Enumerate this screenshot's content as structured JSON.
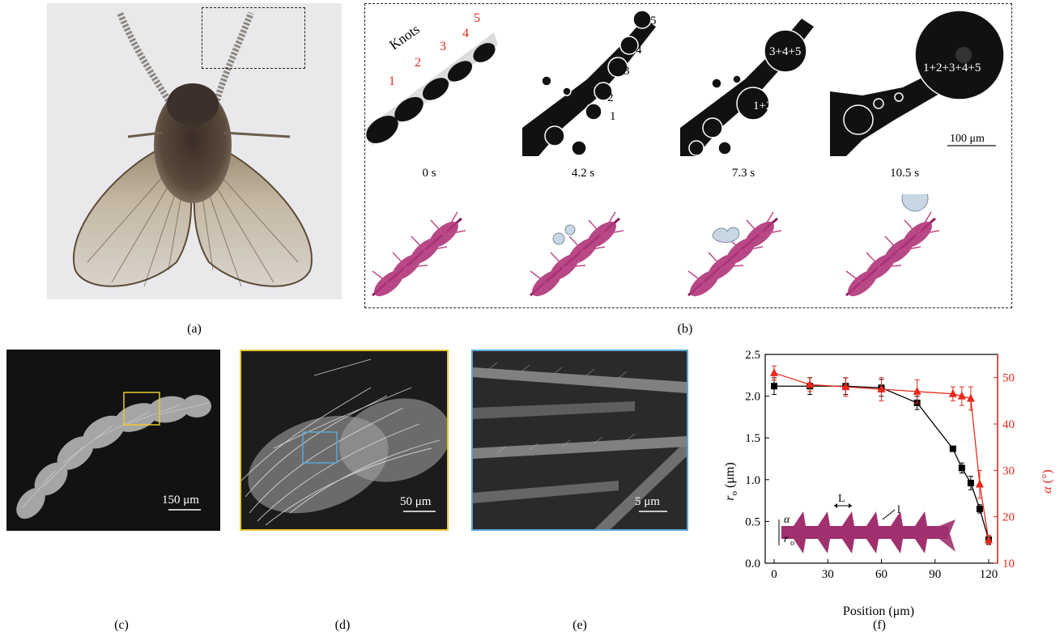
{
  "panels": {
    "a": {
      "label": "(a)"
    },
    "b": {
      "label": "(b)",
      "knots_title": "Knots",
      "knot_numbers": [
        "1",
        "2",
        "3",
        "4",
        "5"
      ],
      "frame2_labels": [
        "5",
        "4",
        "3",
        "2",
        "1"
      ],
      "frame3_labels": [
        "3+4+5",
        "1+2"
      ],
      "frame4_labels": [
        "1+2+3+4+5"
      ],
      "scale_bar": "100 μm",
      "times": [
        "0 s",
        "4.2 s",
        "7.3 s",
        "10.5 s"
      ]
    },
    "c": {
      "label": "(c)",
      "scale_bar": "150 μm"
    },
    "d": {
      "label": "(d)",
      "scale_bar": "50 μm"
    },
    "e": {
      "label": "(e)",
      "scale_bar": "5 μm"
    },
    "f": {
      "label": "(f)"
    }
  },
  "colors": {
    "series_r0": "#000000",
    "series_alpha": "#e8291c",
    "frame_d": "#e8c92e",
    "frame_e": "#5aa6d4",
    "spine_magenta": "#a0306e"
  },
  "chart_data": {
    "type": "line",
    "xlabel": "Position (μm)",
    "ylabel_left": "r_o (μm)",
    "ylabel_right": "α (°)",
    "xlim": [
      -5,
      125
    ],
    "ylim_left": [
      0,
      2.5
    ],
    "ylim_right": [
      10,
      55
    ],
    "xticks": [
      0,
      30,
      60,
      90,
      120
    ],
    "yticks_left": [
      0.0,
      0.5,
      1.0,
      1.5,
      2.0,
      2.5
    ],
    "yticks_right": [
      10,
      20,
      30,
      40,
      50
    ],
    "series": [
      {
        "axis": "left",
        "marker": "square",
        "x": [
          0,
          20,
          40,
          60,
          80,
          100,
          105,
          110,
          115,
          120
        ],
        "y": [
          2.12,
          2.12,
          2.12,
          2.1,
          1.92,
          1.37,
          1.14,
          0.96,
          0.65,
          0.28
        ],
        "err": [
          0.1,
          0.1,
          0.1,
          0.1,
          0.08,
          0.0,
          0.06,
          0.08,
          0.05,
          0.05
        ]
      },
      {
        "axis": "right",
        "marker": "triangle",
        "x": [
          0,
          20,
          40,
          60,
          80,
          100,
          105,
          110,
          115,
          120
        ],
        "y": [
          51,
          48.5,
          48,
          47.5,
          47,
          46.5,
          46,
          45.5,
          27,
          15
        ],
        "err": [
          1.5,
          1.5,
          2,
          2.5,
          2.5,
          1.5,
          2,
          2.5,
          3,
          1
        ]
      }
    ],
    "inset_labels": {
      "L": "L",
      "l": "l",
      "alpha": "α",
      "r0": "r"
    }
  }
}
